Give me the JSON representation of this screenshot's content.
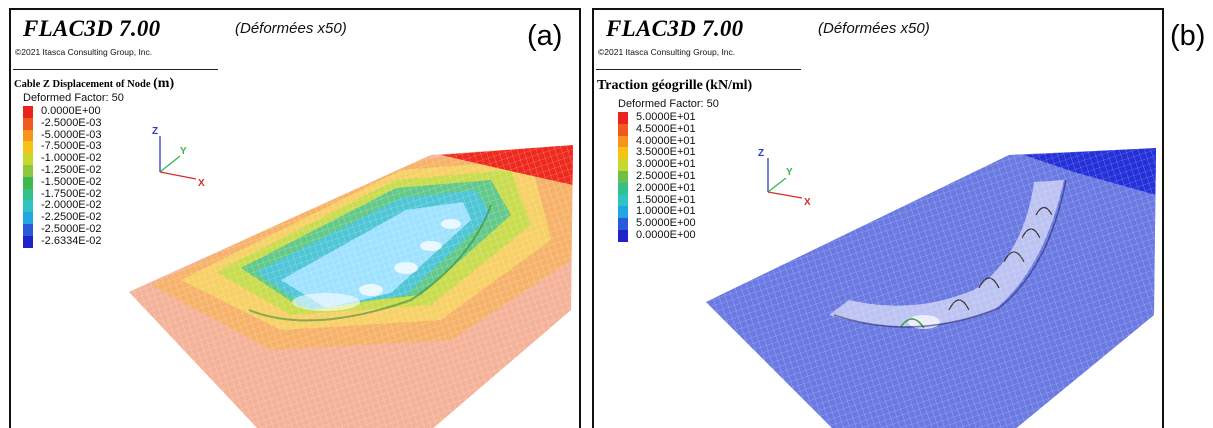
{
  "panels": [
    {
      "tag": "(a)",
      "software_title": "FLAC3D 7.00",
      "copyright": "©2021 Itasca Consulting Group, Inc.",
      "deformation_note": "(Déformées x50)",
      "colorbar_title": "Cable Z Displacement of Node",
      "colorbar_unit": "(m)",
      "deformed_factor": "Deformed Factor: 50",
      "legend": [
        {
          "label": "0.0000E+00",
          "color": "#e8241c"
        },
        {
          "label": "-2.5000E-03",
          "color": "#f05a22"
        },
        {
          "label": "-5.0000E-03",
          "color": "#f7941d"
        },
        {
          "label": "-7.5000E-03",
          "color": "#f6c314"
        },
        {
          "label": "-1.0000E-02",
          "color": "#c9d92b"
        },
        {
          "label": "-1.2500E-02",
          "color": "#8dc63f"
        },
        {
          "label": "-1.5000E-02",
          "color": "#3cb94a"
        },
        {
          "label": "-1.7500E-02",
          "color": "#33c08c"
        },
        {
          "label": "-2.0000E-02",
          "color": "#2ec4c4"
        },
        {
          "label": "-2.2500E-02",
          "color": "#22a6e0"
        },
        {
          "label": "-2.5000E-02",
          "color": "#2a5ad8"
        },
        {
          "label": "-2.6334E-02",
          "color": "#1e22c8"
        }
      ],
      "axes": {
        "z": "Z",
        "y": "Y",
        "x": "X"
      }
    },
    {
      "tag": "(b)",
      "software_title": "FLAC3D 7.00",
      "copyright": "©2021 Itasca Consulting Group, Inc.",
      "deformation_note": "(Déformées x50)",
      "colorbar_title": "Traction géogrille",
      "colorbar_unit": "(kN/ml)",
      "deformed_factor": "Deformed Factor: 50",
      "legend": [
        {
          "label": "5.0000E+01",
          "color": "#e8241c"
        },
        {
          "label": "4.5000E+01",
          "color": "#f05a22"
        },
        {
          "label": "4.0000E+01",
          "color": "#f7941d"
        },
        {
          "label": "3.5000E+01",
          "color": "#f6c314"
        },
        {
          "label": "3.0000E+01",
          "color": "#c9d92b"
        },
        {
          "label": "2.5000E+01",
          "color": "#6cc04a"
        },
        {
          "label": "2.0000E+01",
          "color": "#33c08c"
        },
        {
          "label": "1.5000E+01",
          "color": "#2ec4c4"
        },
        {
          "label": "1.0000E+01",
          "color": "#22a6e0"
        },
        {
          "label": "5.0000E+00",
          "color": "#2a5ad8"
        },
        {
          "label": "0.0000E+00",
          "color": "#1e22c8"
        }
      ],
      "axes": {
        "z": "Z",
        "y": "Y",
        "x": "X"
      }
    }
  ]
}
